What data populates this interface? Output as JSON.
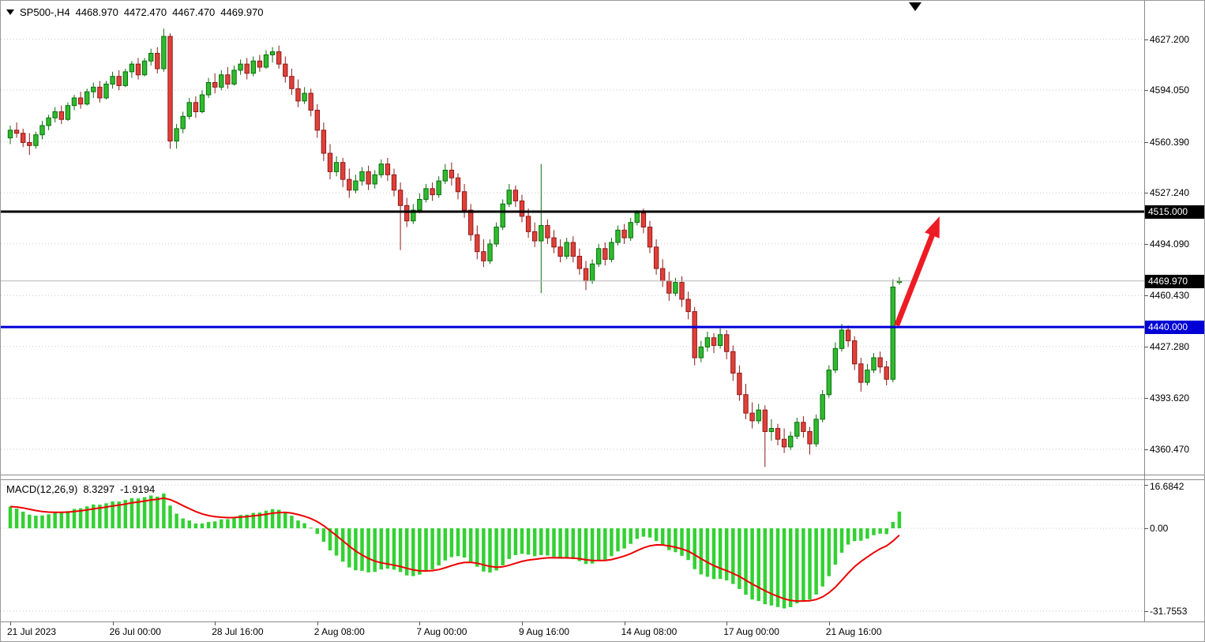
{
  "header": {
    "symbol_period": "SP500-,H4",
    "open": "4468.970",
    "high": "4472.470",
    "low": "4467.470",
    "close": "4469.970"
  },
  "indicator": {
    "label": "MACD(12,26,9)",
    "value": "8.3297",
    "signal_value": "-1.9194"
  },
  "chart_data": {
    "type": "candlestick",
    "symbol": "SP500-",
    "timeframe": "H4",
    "visible_bars": 140,
    "last_candle": {
      "open": 4468.97,
      "high": 4472.47,
      "low": 4467.47,
      "close": 4469.97
    },
    "price_axis_ticks": [
      {
        "v": 4627.2,
        "label": "4627.200"
      },
      {
        "v": 4594.05,
        "label": "4594.050"
      },
      {
        "v": 4560.39,
        "label": "4560.390"
      },
      {
        "v": 4527.24,
        "label": "4527.240"
      },
      {
        "v": 4494.09,
        "label": "4494.090"
      },
      {
        "v": 4460.43,
        "label": "4460.430"
      },
      {
        "v": 4427.28,
        "label": "4427.280"
      },
      {
        "v": 4393.62,
        "label": "4393.620"
      },
      {
        "v": 4360.47,
        "label": "4360.470"
      }
    ],
    "time_ticks": [
      {
        "bar": 0,
        "label": "21 Jul 2023"
      },
      {
        "bar": 16,
        "label": "26 Jul 00:00"
      },
      {
        "bar": 32,
        "label": "28 Jul 16:00"
      },
      {
        "bar": 48,
        "label": "2 Aug 08:00"
      },
      {
        "bar": 64,
        "label": "7 Aug 00:00"
      },
      {
        "bar": 80,
        "label": "9 Aug 16:00"
      },
      {
        "bar": 96,
        "label": "14 Aug 08:00"
      },
      {
        "bar": 112,
        "label": "17 Aug 00:00"
      },
      {
        "bar": 128,
        "label": "21 Aug 16:00"
      }
    ],
    "levels": [
      {
        "value": 4515.0,
        "label": "4515.000",
        "color": "#000000"
      },
      {
        "value": 4440.0,
        "label": "4440.000",
        "color": "#0000d6"
      }
    ],
    "current_price": {
      "value": 4469.97,
      "label": "4469.970",
      "color": "#000000"
    },
    "trend_arrow": {
      "from_bar": 138.6,
      "from_price": 4441,
      "to_bar": 145.3,
      "to_price": 4512,
      "color": "#ed1c24"
    },
    "macd": {
      "label": "MACD(12,26,9)",
      "fast": 12,
      "slow": 26,
      "signal": 9,
      "value": 8.3297,
      "signal_value": -1.9194,
      "axis_ticks": [
        {
          "v": 16.6842,
          "label": "16.6842"
        },
        {
          "v": 0,
          "label": "0.00"
        },
        {
          "v": -31.7553,
          "label": "-31.7553"
        }
      ],
      "histogram_color": "#33d133",
      "signal_color": "#ee0000"
    },
    "colors": {
      "background": "#ffffff",
      "grid": "#c8c8c8",
      "up_fill": "#2fbb2f",
      "up_stroke": "#0b6e0b",
      "down_fill": "#e04038",
      "down_stroke": "#8e1b1b",
      "current_price_line": "#b6b6b6"
    },
    "candles": [
      [
        4563,
        4571,
        4559,
        4568
      ],
      [
        4568,
        4573,
        4563,
        4566
      ],
      [
        4566,
        4569,
        4557,
        4560
      ],
      [
        4560,
        4566,
        4552,
        4558
      ],
      [
        4558,
        4567,
        4556,
        4565
      ],
      [
        4565,
        4574,
        4562,
        4571
      ],
      [
        4571,
        4578,
        4568,
        4576
      ],
      [
        4576,
        4583,
        4573,
        4580
      ],
      [
        4580,
        4584,
        4572,
        4575
      ],
      [
        4575,
        4586,
        4574,
        4584
      ],
      [
        4584,
        4591,
        4581,
        4589
      ],
      [
        4589,
        4593,
        4582,
        4585
      ],
      [
        4585,
        4595,
        4584,
        4593
      ],
      [
        4593,
        4599,
        4589,
        4596
      ],
      [
        4596,
        4600,
        4586,
        4589
      ],
      [
        4589,
        4600,
        4588,
        4598
      ],
      [
        4598,
        4606,
        4595,
        4603
      ],
      [
        4603,
        4607,
        4594,
        4597
      ],
      [
        4597,
        4608,
        4596,
        4606
      ],
      [
        4606,
        4613,
        4602,
        4611
      ],
      [
        4611,
        4615,
        4601,
        4604
      ],
      [
        4604,
        4615,
        4603,
        4613
      ],
      [
        4613,
        4621,
        4610,
        4618
      ],
      [
        4618,
        4622,
        4605,
        4608
      ],
      [
        4608,
        4634,
        4606,
        4629
      ],
      [
        4629,
        4631,
        4556,
        4561
      ],
      [
        4561,
        4572,
        4556,
        4569
      ],
      [
        4569,
        4580,
        4566,
        4577
      ],
      [
        4577,
        4589,
        4575,
        4586
      ],
      [
        4586,
        4590,
        4576,
        4580
      ],
      [
        4580,
        4594,
        4579,
        4591
      ],
      [
        4591,
        4602,
        4589,
        4599
      ],
      [
        4599,
        4605,
        4592,
        4596
      ],
      [
        4596,
        4607,
        4594,
        4604
      ],
      [
        4604,
        4609,
        4595,
        4598
      ],
      [
        4598,
        4610,
        4597,
        4607
      ],
      [
        4607,
        4614,
        4604,
        4611
      ],
      [
        4611,
        4615,
        4601,
        4605
      ],
      [
        4605,
        4616,
        4603,
        4613
      ],
      [
        4613,
        4617,
        4606,
        4609
      ],
      [
        4609,
        4620,
        4608,
        4617
      ],
      [
        4617,
        4622,
        4612,
        4619
      ],
      [
        4619,
        4623,
        4608,
        4611
      ],
      [
        4611,
        4616,
        4599,
        4603
      ],
      [
        4603,
        4608,
        4591,
        4595
      ],
      [
        4595,
        4601,
        4583,
        4587
      ],
      [
        4587,
        4596,
        4585,
        4592
      ],
      [
        4592,
        4595,
        4577,
        4581
      ],
      [
        4581,
        4585,
        4563,
        4568
      ],
      [
        4568,
        4573,
        4548,
        4553
      ],
      [
        4553,
        4559,
        4536,
        4541
      ],
      [
        4541,
        4551,
        4538,
        4547
      ],
      [
        4547,
        4550,
        4531,
        4536
      ],
      [
        4536,
        4543,
        4524,
        4529
      ],
      [
        4529,
        4539,
        4527,
        4535
      ],
      [
        4535,
        4544,
        4532,
        4541
      ],
      [
        4541,
        4545,
        4529,
        4533
      ],
      [
        4533,
        4542,
        4530,
        4539
      ],
      [
        4539,
        4549,
        4537,
        4546
      ],
      [
        4546,
        4550,
        4535,
        4539
      ],
      [
        4539,
        4543,
        4525,
        4529
      ],
      [
        4529,
        4534,
        4490,
        4519
      ],
      [
        4519,
        4524,
        4505,
        4509
      ],
      [
        4509,
        4520,
        4507,
        4516
      ],
      [
        4516,
        4527,
        4514,
        4523
      ],
      [
        4523,
        4533,
        4521,
        4530
      ],
      [
        4530,
        4534,
        4522,
        4526
      ],
      [
        4526,
        4538,
        4524,
        4535
      ],
      [
        4535,
        4546,
        4533,
        4542
      ],
      [
        4542,
        4547,
        4532,
        4537
      ],
      [
        4537,
        4540,
        4523,
        4528
      ],
      [
        4528,
        4533,
        4511,
        4516
      ],
      [
        4516,
        4520,
        4496,
        4500
      ],
      [
        4500,
        4506,
        4484,
        4489
      ],
      [
        4489,
        4497,
        4479,
        4483
      ],
      [
        4483,
        4497,
        4481,
        4494
      ],
      [
        4494,
        4508,
        4492,
        4505
      ],
      [
        4505,
        4523,
        4503,
        4520
      ],
      [
        4520,
        4533,
        4518,
        4529
      ],
      [
        4529,
        4532,
        4518,
        4522
      ],
      [
        4522,
        4526,
        4508,
        4512
      ],
      [
        4512,
        4517,
        4498,
        4502
      ],
      [
        4502,
        4508,
        4492,
        4496
      ],
      [
        4496,
        4546,
        4462,
        4506
      ],
      [
        4506,
        4510,
        4494,
        4498
      ],
      [
        4498,
        4503,
        4488,
        4492
      ],
      [
        4492,
        4497,
        4482,
        4486
      ],
      [
        4486,
        4498,
        4484,
        4495
      ],
      [
        4495,
        4499,
        4482,
        4486
      ],
      [
        4486,
        4491,
        4474,
        4478
      ],
      [
        4478,
        4483,
        4464,
        4470
      ],
      [
        4470,
        4484,
        4468,
        4481
      ],
      [
        4481,
        4494,
        4479,
        4491
      ],
      [
        4491,
        4495,
        4480,
        4484
      ],
      [
        4484,
        4498,
        4482,
        4495
      ],
      [
        4495,
        4506,
        4493,
        4503
      ],
      [
        4503,
        4507,
        4494,
        4498
      ],
      [
        4498,
        4511,
        4496,
        4508
      ],
      [
        4508,
        4516,
        4506,
        4514
      ],
      [
        4514,
        4517,
        4501,
        4505
      ],
      [
        4505,
        4509,
        4488,
        4492
      ],
      [
        4492,
        4497,
        4474,
        4478
      ],
      [
        4478,
        4484,
        4466,
        4470
      ],
      [
        4470,
        4476,
        4457,
        4462
      ],
      [
        4462,
        4472,
        4460,
        4469
      ],
      [
        4469,
        4473,
        4453,
        4458
      ],
      [
        4458,
        4463,
        4445,
        4450
      ],
      [
        4450,
        4453,
        4415,
        4420
      ],
      [
        4420,
        4431,
        4417,
        4427
      ],
      [
        4427,
        4437,
        4424,
        4433
      ],
      [
        4433,
        4436,
        4423,
        4428
      ],
      [
        4428,
        4439,
        4426,
        4435
      ],
      [
        4435,
        4438,
        4419,
        4424
      ],
      [
        4424,
        4428,
        4405,
        4410
      ],
      [
        4410,
        4415,
        4392,
        4396
      ],
      [
        4396,
        4403,
        4380,
        4384
      ],
      [
        4384,
        4391,
        4374,
        4379
      ],
      [
        4379,
        4390,
        4377,
        4386
      ],
      [
        4386,
        4389,
        4349,
        4372
      ],
      [
        4372,
        4380,
        4366,
        4374
      ],
      [
        4374,
        4377,
        4363,
        4367
      ],
      [
        4367,
        4374,
        4358,
        4362
      ],
      [
        4362,
        4372,
        4360,
        4369
      ],
      [
        4369,
        4381,
        4367,
        4378
      ],
      [
        4378,
        4382,
        4368,
        4372
      ],
      [
        4372,
        4375,
        4357,
        4364
      ],
      [
        4364,
        4383,
        4362,
        4380
      ],
      [
        4380,
        4399,
        4378,
        4396
      ],
      [
        4396,
        4415,
        4394,
        4412
      ],
      [
        4412,
        4430,
        4410,
        4426
      ],
      [
        4426,
        4442,
        4424,
        4438
      ],
      [
        4438,
        4441,
        4427,
        4431
      ],
      [
        4431,
        4434,
        4412,
        4416
      ],
      [
        4416,
        4420,
        4398,
        4404
      ],
      [
        4404,
        4416,
        4402,
        4412
      ],
      [
        4412,
        4423,
        4410,
        4420
      ],
      [
        4420,
        4424,
        4410,
        4414
      ],
      [
        4414,
        4418,
        4402,
        4406
      ],
      [
        4406,
        4471,
        4404,
        4466
      ],
      [
        4468.97,
        4472.47,
        4467.47,
        4469.97
      ]
    ]
  }
}
